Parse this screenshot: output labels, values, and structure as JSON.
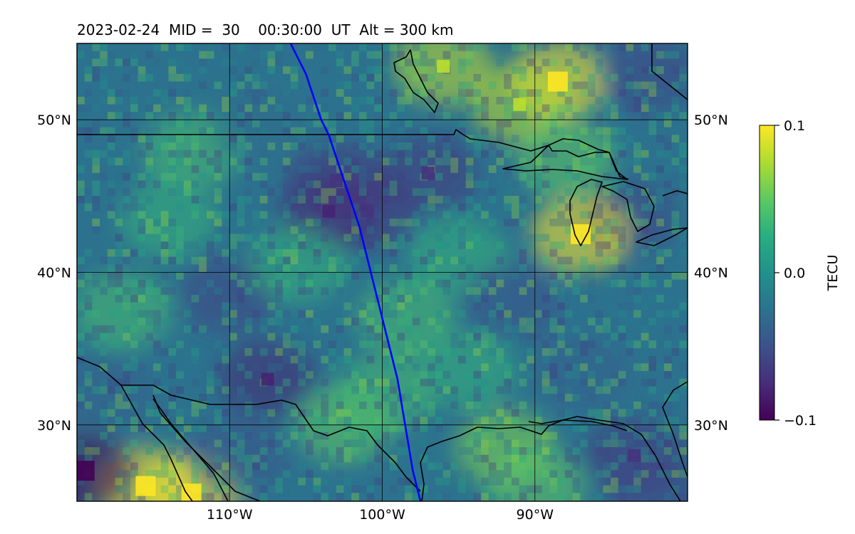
{
  "chart_data": {
    "type": "heatmap",
    "title": "2023-02-24  MID =  30    00:30:00  UT  Alt = 300 km",
    "x_ticks": [
      "110°W",
      "100°W",
      "90°W"
    ],
    "x_tick_values": [
      -110,
      -100,
      -90
    ],
    "y_ticks": [
      "50°N",
      "40°N",
      "30°N"
    ],
    "y_tick_values": [
      50,
      40,
      30
    ],
    "xlim": [
      -120,
      -80
    ],
    "ylim": [
      25,
      55
    ],
    "grid": true,
    "colorbar": {
      "label": "TECU",
      "ticks": [
        "0.1",
        "0.0",
        "−0.1"
      ],
      "tick_values": [
        0.1,
        0.0,
        -0.1
      ],
      "range": [
        -0.1,
        0.1
      ],
      "colormap": "viridis"
    },
    "features": {
      "coastlines": "black",
      "satellite_track": "blue"
    },
    "track": {
      "lon": [
        -106.0,
        -105.0,
        -104.0,
        -103.5,
        -103.0,
        -102.5,
        -102.0,
        -101.5,
        -101.0,
        -100.5,
        -100.0,
        -99.5,
        -99.0,
        -98.5,
        -98.0,
        -97.5
      ],
      "lat": [
        55.0,
        53.0,
        50.0,
        49.0,
        47.5,
        46.0,
        44.5,
        43.0,
        41.0,
        39.0,
        37.0,
        35.0,
        33.0,
        30.0,
        27.0,
        25.0
      ]
    },
    "anomalies": [
      {
        "lon": -115.5,
        "lat": 26.0,
        "value": 0.1
      },
      {
        "lon": -112.5,
        "lat": 25.5,
        "value": 0.1
      },
      {
        "lon": -119.5,
        "lat": 27.0,
        "value": -0.1
      },
      {
        "lon": -88.5,
        "lat": 52.5,
        "value": 0.1
      },
      {
        "lon": -91.0,
        "lat": 51.0,
        "value": 0.08
      },
      {
        "lon": -96.0,
        "lat": 53.5,
        "value": 0.08
      },
      {
        "lon": -82.5,
        "lat": 53.0,
        "value": -0.06
      },
      {
        "lon": -88.0,
        "lat": 47.5,
        "value": 0.05
      },
      {
        "lon": -101.0,
        "lat": 44.0,
        "value": -0.07
      },
      {
        "lon": -103.5,
        "lat": 44.0,
        "value": -0.08
      },
      {
        "lon": -97.0,
        "lat": 46.5,
        "value": -0.07
      },
      {
        "lon": -103.0,
        "lat": 46.0,
        "value": -0.07
      },
      {
        "lon": -84.0,
        "lat": 43.5,
        "value": -0.06
      },
      {
        "lon": -87.0,
        "lat": 42.5,
        "value": 0.1
      },
      {
        "lon": -107.5,
        "lat": 33.0,
        "value": -0.08
      },
      {
        "lon": -110.0,
        "lat": 38.5,
        "value": -0.06
      },
      {
        "lon": -102.5,
        "lat": 30.0,
        "value": 0.05
      },
      {
        "lon": -98.5,
        "lat": 37.0,
        "value": 0.04
      },
      {
        "lon": -92.0,
        "lat": 28.5,
        "value": 0.06
      },
      {
        "lon": -90.0,
        "lat": 26.0,
        "value": 0.05
      },
      {
        "lon": -83.5,
        "lat": 28.0,
        "value": -0.07
      },
      {
        "lon": -82.0,
        "lat": 25.5,
        "value": -0.06
      },
      {
        "lon": -109.5,
        "lat": 28.0,
        "value": -0.05
      },
      {
        "lon": -117.0,
        "lat": 37.5,
        "value": 0.04
      },
      {
        "lon": -112.5,
        "lat": 48.0,
        "value": 0.04
      },
      {
        "lon": -114.0,
        "lat": 43.5,
        "value": 0.03
      },
      {
        "lon": -95.0,
        "lat": 41.0,
        "value": 0.03
      },
      {
        "lon": -91.5,
        "lat": 38.0,
        "value": -0.05
      },
      {
        "lon": -87.0,
        "lat": 33.5,
        "value": -0.04
      },
      {
        "lon": -94.5,
        "lat": 33.5,
        "value": 0.03
      },
      {
        "lon": -100.0,
        "lat": 32.0,
        "value": 0.04
      },
      {
        "lon": -105.5,
        "lat": 40.5,
        "value": 0.03
      },
      {
        "lon": -108.0,
        "lat": 49.5,
        "value": -0.03
      },
      {
        "lon": -118.0,
        "lat": 32.0,
        "value": -0.04
      }
    ]
  }
}
